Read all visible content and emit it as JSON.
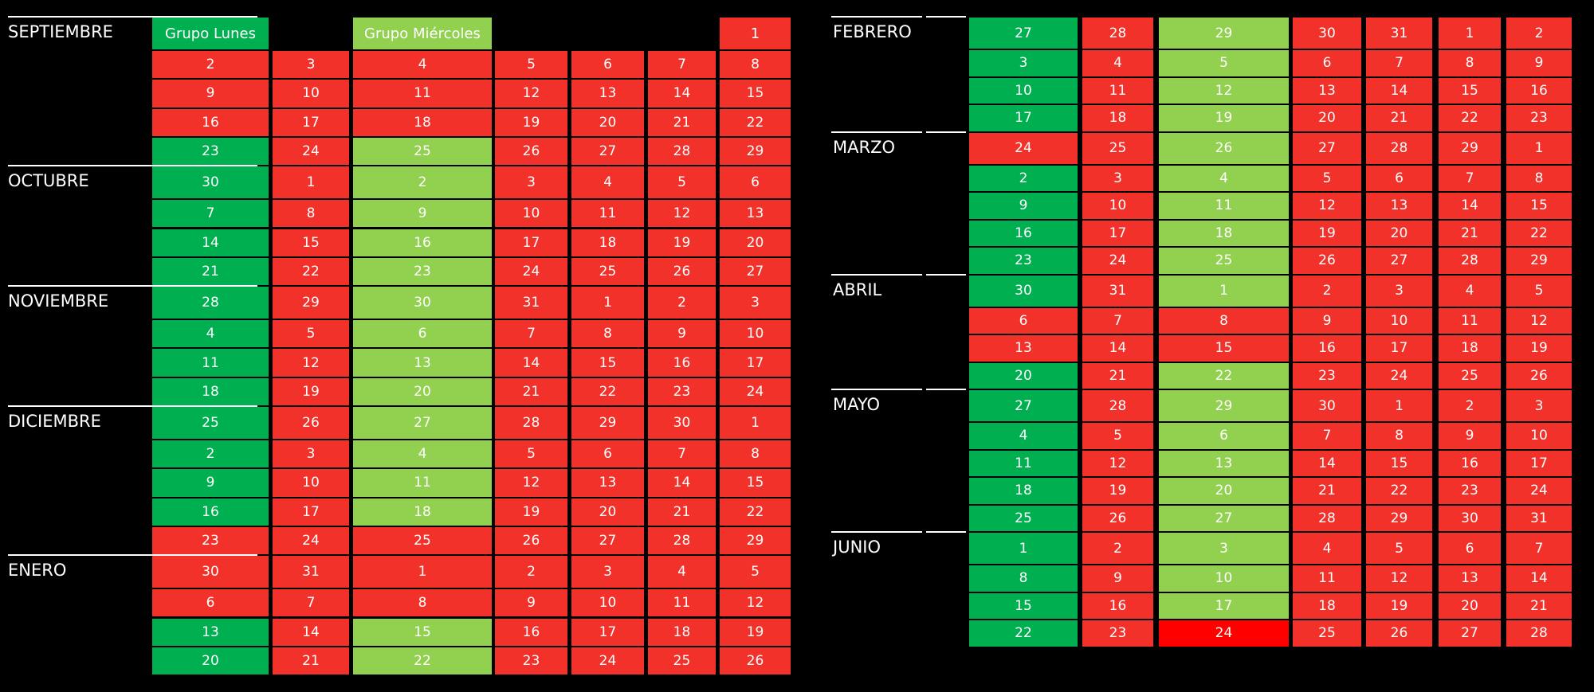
{
  "left": {
    "header": {
      "month": "SEPTIEMBRE",
      "grupo_lunes": "Grupo Lunes",
      "lunes_color": "#00b050",
      "grupo_miercoles": "Grupo Miércoles",
      "miercoles_color": "#92d050",
      "day": 1,
      "day_color": "#f2312b"
    },
    "weeks": [
      {
        "days": [
          2,
          3,
          4,
          5,
          6,
          7,
          8
        ],
        "colors": [
          "#f2312b",
          "#f2312b",
          "#f2312b",
          "#f2312b",
          "#f2312b",
          "#f2312b",
          "#f2312b"
        ]
      },
      {
        "days": [
          9,
          10,
          11,
          12,
          13,
          14,
          15
        ],
        "colors": [
          "#f2312b",
          "#f2312b",
          "#f2312b",
          "#f2312b",
          "#f2312b",
          "#f2312b",
          "#f2312b"
        ]
      },
      {
        "days": [
          16,
          17,
          18,
          19,
          20,
          21,
          22
        ],
        "colors": [
          "#f2312b",
          "#f2312b",
          "#f2312b",
          "#f2312b",
          "#f2312b",
          "#f2312b",
          "#f2312b"
        ]
      },
      {
        "days": [
          23,
          24,
          25,
          26,
          27,
          28,
          29
        ],
        "colors": [
          "#00b050",
          "#f2312b",
          "#92d050",
          "#f2312b",
          "#f2312b",
          "#f2312b",
          "#f2312b"
        ]
      },
      {
        "month": "OCTUBRE",
        "days": [
          30,
          1,
          2,
          3,
          4,
          5,
          6
        ],
        "colors": [
          "#00b050",
          "#f2312b",
          "#92d050",
          "#f2312b",
          "#f2312b",
          "#f2312b",
          "#f2312b"
        ]
      },
      {
        "days": [
          7,
          8,
          9,
          10,
          11,
          12,
          13
        ],
        "colors": [
          "#00b050",
          "#f2312b",
          "#92d050",
          "#f2312b",
          "#f2312b",
          "#f2312b",
          "#f2312b"
        ]
      },
      {
        "days": [
          14,
          15,
          16,
          17,
          18,
          19,
          20
        ],
        "colors": [
          "#00b050",
          "#f2312b",
          "#92d050",
          "#f2312b",
          "#f2312b",
          "#f2312b",
          "#f2312b"
        ]
      },
      {
        "days": [
          21,
          22,
          23,
          24,
          25,
          26,
          27
        ],
        "colors": [
          "#00b050",
          "#f2312b",
          "#92d050",
          "#f2312b",
          "#f2312b",
          "#f2312b",
          "#f2312b"
        ]
      },
      {
        "month": "NOVIEMBRE",
        "days": [
          28,
          29,
          30,
          31,
          1,
          2,
          3
        ],
        "colors": [
          "#00b050",
          "#f2312b",
          "#92d050",
          "#f2312b",
          "#f2312b",
          "#f2312b",
          "#f2312b"
        ]
      },
      {
        "days": [
          4,
          5,
          6,
          7,
          8,
          9,
          10
        ],
        "colors": [
          "#00b050",
          "#f2312b",
          "#92d050",
          "#f2312b",
          "#f2312b",
          "#f2312b",
          "#f2312b"
        ]
      },
      {
        "days": [
          11,
          12,
          13,
          14,
          15,
          16,
          17
        ],
        "colors": [
          "#00b050",
          "#f2312b",
          "#92d050",
          "#f2312b",
          "#f2312b",
          "#f2312b",
          "#f2312b"
        ]
      },
      {
        "days": [
          18,
          19,
          20,
          21,
          22,
          23,
          24
        ],
        "colors": [
          "#00b050",
          "#f2312b",
          "#92d050",
          "#f2312b",
          "#f2312b",
          "#f2312b",
          "#f2312b"
        ]
      },
      {
        "month": "DICIEMBRE",
        "days": [
          25,
          26,
          27,
          28,
          29,
          30,
          1
        ],
        "colors": [
          "#00b050",
          "#f2312b",
          "#92d050",
          "#f2312b",
          "#f2312b",
          "#f2312b",
          "#f2312b"
        ]
      },
      {
        "days": [
          2,
          3,
          4,
          5,
          6,
          7,
          8
        ],
        "colors": [
          "#00b050",
          "#f2312b",
          "#92d050",
          "#f2312b",
          "#f2312b",
          "#f2312b",
          "#f2312b"
        ]
      },
      {
        "days": [
          9,
          10,
          11,
          12,
          13,
          14,
          15
        ],
        "colors": [
          "#00b050",
          "#f2312b",
          "#92d050",
          "#f2312b",
          "#f2312b",
          "#f2312b",
          "#f2312b"
        ]
      },
      {
        "days": [
          16,
          17,
          18,
          19,
          20,
          21,
          22
        ],
        "colors": [
          "#00b050",
          "#f2312b",
          "#92d050",
          "#f2312b",
          "#f2312b",
          "#f2312b",
          "#f2312b"
        ]
      },
      {
        "days": [
          23,
          24,
          25,
          26,
          27,
          28,
          29
        ],
        "colors": [
          "#f2312b",
          "#f2312b",
          "#f2312b",
          "#f2312b",
          "#f2312b",
          "#f2312b",
          "#f2312b"
        ]
      },
      {
        "month": "ENERO",
        "days": [
          30,
          31,
          1,
          2,
          3,
          4,
          5
        ],
        "colors": [
          "#f2312b",
          "#f2312b",
          "#f2312b",
          "#f2312b",
          "#f2312b",
          "#f2312b",
          "#f2312b"
        ]
      },
      {
        "days": [
          6,
          7,
          8,
          9,
          10,
          11,
          12
        ],
        "colors": [
          "#f2312b",
          "#f2312b",
          "#f2312b",
          "#f2312b",
          "#f2312b",
          "#f2312b",
          "#f2312b"
        ]
      },
      {
        "days": [
          13,
          14,
          15,
          16,
          17,
          18,
          19
        ],
        "colors": [
          "#00b050",
          "#f2312b",
          "#92d050",
          "#f2312b",
          "#f2312b",
          "#f2312b",
          "#f2312b"
        ]
      },
      {
        "days": [
          20,
          21,
          22,
          23,
          24,
          25,
          26
        ],
        "colors": [
          "#00b050",
          "#f2312b",
          "#92d050",
          "#f2312b",
          "#f2312b",
          "#f2312b",
          "#f2312b"
        ]
      }
    ]
  },
  "right": {
    "weeks": [
      {
        "month": "FEBRERO",
        "days": [
          27,
          28,
          29,
          30,
          31,
          1,
          2
        ],
        "colors": [
          "#00b050",
          "#f2312b",
          "#92d050",
          "#f2312b",
          "#f2312b",
          "#f2312b",
          "#f2312b"
        ]
      },
      {
        "days": [
          3,
          4,
          5,
          6,
          7,
          8,
          9
        ],
        "colors": [
          "#00b050",
          "#f2312b",
          "#92d050",
          "#f2312b",
          "#f2312b",
          "#f2312b",
          "#f2312b"
        ]
      },
      {
        "days": [
          10,
          11,
          12,
          13,
          14,
          15,
          16
        ],
        "colors": [
          "#00b050",
          "#f2312b",
          "#92d050",
          "#f2312b",
          "#f2312b",
          "#f2312b",
          "#f2312b"
        ]
      },
      {
        "days": [
          17,
          18,
          19,
          20,
          21,
          22,
          23
        ],
        "colors": [
          "#00b050",
          "#f2312b",
          "#92d050",
          "#f2312b",
          "#f2312b",
          "#f2312b",
          "#f2312b"
        ]
      },
      {
        "month": "MARZO",
        "days": [
          24,
          25,
          26,
          27,
          28,
          29,
          1
        ],
        "colors": [
          "#f2312b",
          "#f2312b",
          "#92d050",
          "#f2312b",
          "#f2312b",
          "#f2312b",
          "#f2312b"
        ]
      },
      {
        "days": [
          2,
          3,
          4,
          5,
          6,
          7,
          8
        ],
        "colors": [
          "#00b050",
          "#f2312b",
          "#92d050",
          "#f2312b",
          "#f2312b",
          "#f2312b",
          "#f2312b"
        ]
      },
      {
        "days": [
          9,
          10,
          11,
          12,
          13,
          14,
          15
        ],
        "colors": [
          "#00b050",
          "#f2312b",
          "#92d050",
          "#f2312b",
          "#f2312b",
          "#f2312b",
          "#f2312b"
        ]
      },
      {
        "days": [
          16,
          17,
          18,
          19,
          20,
          21,
          22
        ],
        "colors": [
          "#00b050",
          "#f2312b",
          "#92d050",
          "#f2312b",
          "#f2312b",
          "#f2312b",
          "#f2312b"
        ]
      },
      {
        "days": [
          23,
          24,
          25,
          26,
          27,
          28,
          29
        ],
        "colors": [
          "#00b050",
          "#f2312b",
          "#92d050",
          "#f2312b",
          "#f2312b",
          "#f2312b",
          "#f2312b"
        ]
      },
      {
        "month": "ABRIL",
        "days": [
          30,
          31,
          1,
          2,
          3,
          4,
          5
        ],
        "colors": [
          "#00b050",
          "#f2312b",
          "#92d050",
          "#f2312b",
          "#f2312b",
          "#f2312b",
          "#f2312b"
        ]
      },
      {
        "days": [
          6,
          7,
          8,
          9,
          10,
          11,
          12
        ],
        "colors": [
          "#f2312b",
          "#f2312b",
          "#f2312b",
          "#f2312b",
          "#f2312b",
          "#f2312b",
          "#f2312b"
        ]
      },
      {
        "days": [
          13,
          14,
          15,
          16,
          17,
          18,
          19
        ],
        "colors": [
          "#f2312b",
          "#f2312b",
          "#f2312b",
          "#f2312b",
          "#f2312b",
          "#f2312b",
          "#f2312b"
        ]
      },
      {
        "days": [
          20,
          21,
          22,
          23,
          24,
          25,
          26
        ],
        "colors": [
          "#00b050",
          "#f2312b",
          "#92d050",
          "#f2312b",
          "#f2312b",
          "#f2312b",
          "#f2312b"
        ]
      },
      {
        "month": "MAYO",
        "days": [
          27,
          28,
          29,
          30,
          1,
          2,
          3
        ],
        "colors": [
          "#00b050",
          "#f2312b",
          "#92d050",
          "#f2312b",
          "#f2312b",
          "#f2312b",
          "#f2312b"
        ]
      },
      {
        "days": [
          4,
          5,
          6,
          7,
          8,
          9,
          10
        ],
        "colors": [
          "#00b050",
          "#f2312b",
          "#92d050",
          "#f2312b",
          "#f2312b",
          "#f2312b",
          "#f2312b"
        ]
      },
      {
        "days": [
          11,
          12,
          13,
          14,
          15,
          16,
          17
        ],
        "colors": [
          "#00b050",
          "#f2312b",
          "#92d050",
          "#f2312b",
          "#f2312b",
          "#f2312b",
          "#f2312b"
        ]
      },
      {
        "days": [
          18,
          19,
          20,
          21,
          22,
          23,
          24
        ],
        "colors": [
          "#00b050",
          "#f2312b",
          "#92d050",
          "#f2312b",
          "#f2312b",
          "#f2312b",
          "#f2312b"
        ]
      },
      {
        "days": [
          25,
          26,
          27,
          28,
          29,
          30,
          31
        ],
        "colors": [
          "#00b050",
          "#f2312b",
          "#92d050",
          "#f2312b",
          "#f2312b",
          "#f2312b",
          "#f2312b"
        ]
      },
      {
        "month": "JUNIO",
        "days": [
          1,
          2,
          3,
          4,
          5,
          6,
          7
        ],
        "colors": [
          "#00b050",
          "#f2312b",
          "#92d050",
          "#f2312b",
          "#f2312b",
          "#f2312b",
          "#f2312b"
        ]
      },
      {
        "days": [
          8,
          9,
          10,
          11,
          12,
          13,
          14
        ],
        "colors": [
          "#00b050",
          "#f2312b",
          "#92d050",
          "#f2312b",
          "#f2312b",
          "#f2312b",
          "#f2312b"
        ]
      },
      {
        "days": [
          15,
          16,
          17,
          18,
          19,
          20,
          21
        ],
        "colors": [
          "#00b050",
          "#f2312b",
          "#92d050",
          "#f2312b",
          "#f2312b",
          "#f2312b",
          "#f2312b"
        ]
      },
      {
        "days": [
          22,
          23,
          24,
          25,
          26,
          27,
          28
        ],
        "colors": [
          "#00b050",
          "#f2312b",
          "#ff0000",
          "#f2312b",
          "#f2312b",
          "#f2312b",
          "#f2312b"
        ]
      }
    ]
  }
}
